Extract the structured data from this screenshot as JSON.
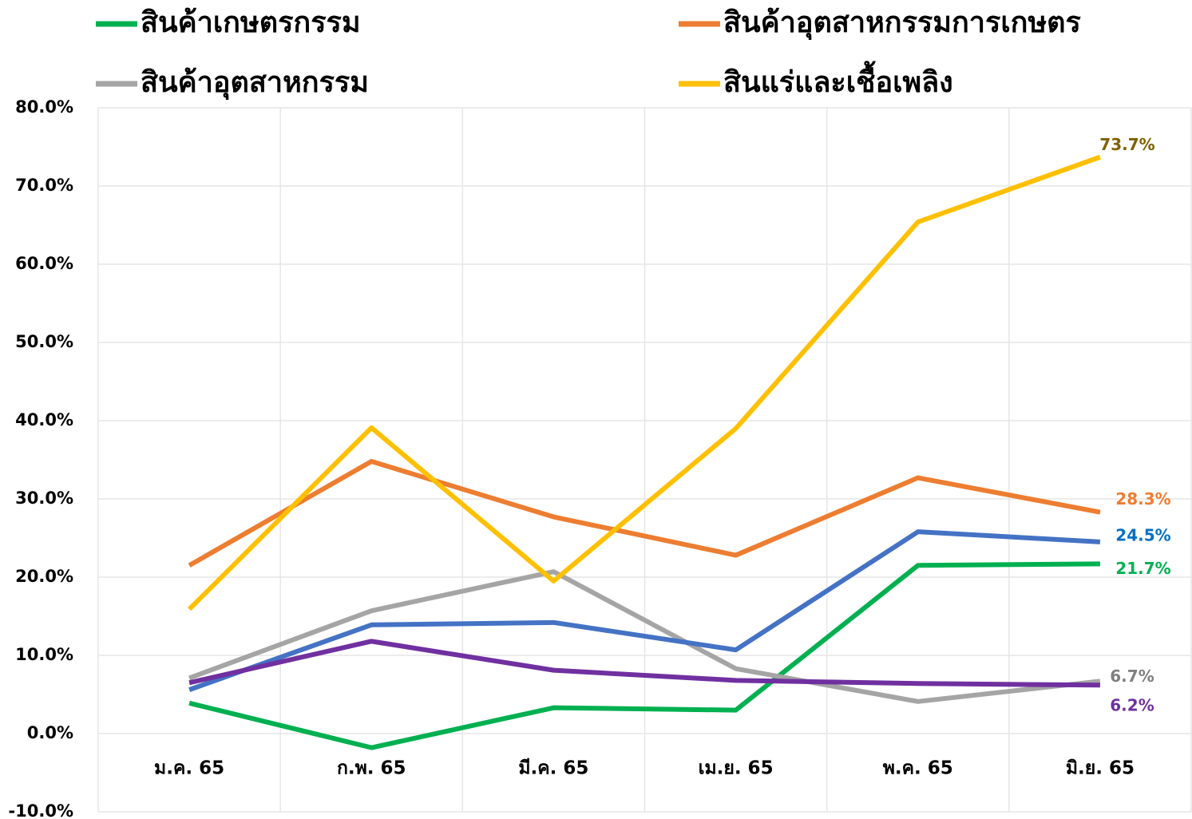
{
  "chart_data": {
    "type": "line",
    "categories": [
      "ม.ค. 65",
      "ก.พ. 65",
      "มี.ค. 65",
      "เม.ย. 65",
      "พ.ค. 65",
      "มิ.ย. 65"
    ],
    "series": [
      {
        "name": "สินค้าเกษตรกรรม",
        "color": "#00b050",
        "label_color": "#00b050",
        "values": [
          3.9,
          -1.8,
          3.3,
          3.0,
          21.5,
          21.7
        ],
        "value_labels": [
          null,
          null,
          null,
          null,
          null,
          "21.7%"
        ]
      },
      {
        "name": "สินค้าอุตสาหกรรมการเกษตร",
        "color": "#ed7d31",
        "label_color": "#ed7d31",
        "values": [
          21.5,
          34.8,
          27.7,
          22.8,
          32.7,
          28.3
        ],
        "value_labels": [
          null,
          null,
          null,
          null,
          null,
          "28.3%"
        ]
      },
      {
        "name": "สินค้าอุตสาหกรรม",
        "color": "#a5a5a5",
        "label_color": "#7f7f7f",
        "values": [
          7.1,
          15.7,
          20.7,
          8.3,
          4.1,
          6.7
        ],
        "value_labels": [
          null,
          null,
          null,
          null,
          null,
          "6.7%"
        ]
      },
      {
        "name": "สินแร่และเชื้อเพลิง",
        "color": "#ffc000",
        "label_color": "#7f6000",
        "values": [
          15.9,
          39.1,
          19.5,
          39.0,
          65.4,
          73.7
        ],
        "value_labels": [
          null,
          null,
          null,
          null,
          null,
          "73.7%"
        ]
      },
      {
        "color": "#4472c4",
        "label_color": "#0070c0",
        "values": [
          5.6,
          13.9,
          14.2,
          10.7,
          25.8,
          24.5
        ],
        "value_labels": [
          null,
          null,
          null,
          null,
          null,
          "24.5%"
        ]
      },
      {
        "color": "#7030a0",
        "label_color": "#7030a0",
        "values": [
          6.5,
          11.8,
          8.1,
          6.8,
          6.4,
          6.2
        ],
        "value_labels": [
          null,
          null,
          null,
          null,
          null,
          "6.2%"
        ]
      }
    ],
    "ylim": [
      -10,
      80
    ],
    "yticks": [
      {
        "value": -10,
        "label": "-10.0%"
      },
      {
        "value": 0,
        "label": "0.0%"
      },
      {
        "value": 10,
        "label": "10.0%"
      },
      {
        "value": 20,
        "label": "20.0%"
      },
      {
        "value": 30,
        "label": "30.0%"
      },
      {
        "value": 40,
        "label": "40.0%"
      },
      {
        "value": 50,
        "label": "50.0%"
      },
      {
        "value": 60,
        "label": "60.0%"
      },
      {
        "value": 70,
        "label": "70.0%"
      },
      {
        "value": 80,
        "label": "80.0%"
      }
    ],
    "grid": true
  }
}
